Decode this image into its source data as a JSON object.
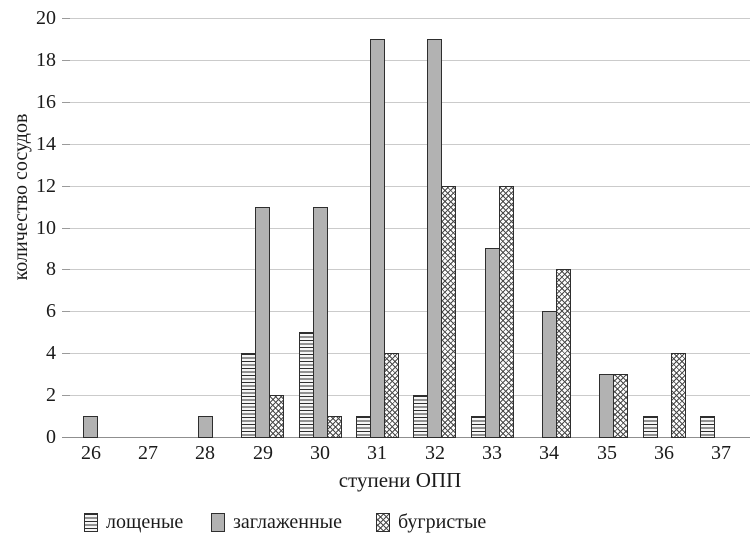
{
  "chart_data": {
    "type": "bar",
    "title": "",
    "xlabel": "ступени ОПП",
    "ylabel": "количество сосудов",
    "categories": [
      26,
      27,
      28,
      29,
      30,
      31,
      32,
      33,
      34,
      35,
      36,
      37
    ],
    "series": [
      {
        "name": "лощеные",
        "pattern": "stripes",
        "values": [
          0,
          0,
          0,
          4,
          5,
          1,
          2,
          1,
          0,
          0,
          1,
          1
        ]
      },
      {
        "name": "заглаженные",
        "pattern": "solid",
        "values": [
          1,
          0,
          1,
          11,
          11,
          19,
          19,
          9,
          6,
          3,
          0,
          0
        ]
      },
      {
        "name": "бугристые",
        "pattern": "cross",
        "values": [
          0,
          0,
          0,
          2,
          1,
          4,
          12,
          12,
          8,
          3,
          4,
          0
        ]
      }
    ],
    "ylim": [
      0,
      20
    ],
    "ytick_step": 2,
    "grid": "horizontal",
    "legend_position": "bottom"
  },
  "colors": {
    "background": "#ffffff",
    "bar_solid_fill": "#b2b2b2",
    "bar_border": "#2e2e2e",
    "gridline": "#cbcbcb",
    "axis_line": "#8f8f8f",
    "text": "#1b1b1b"
  }
}
